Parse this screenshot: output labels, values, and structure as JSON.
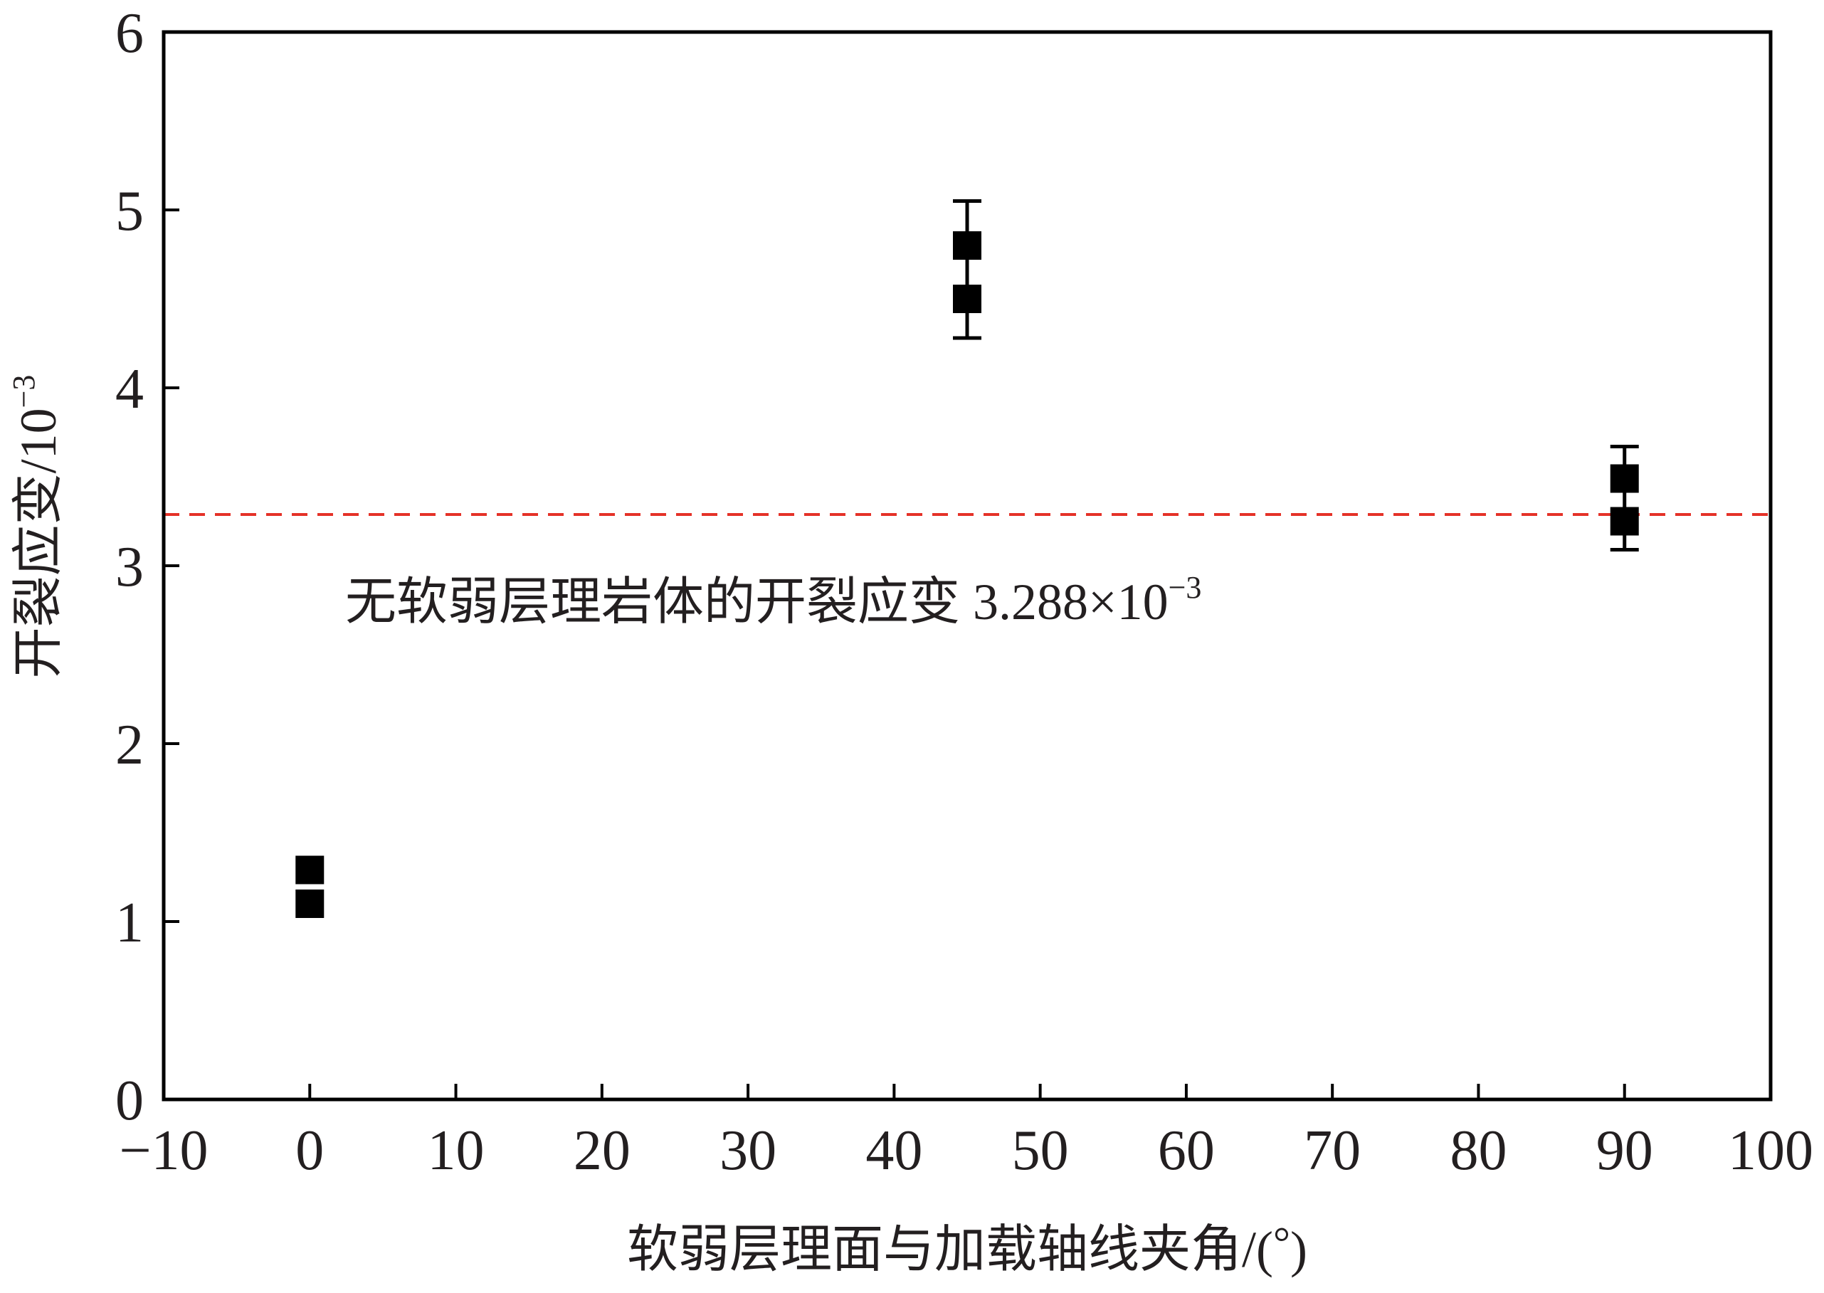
{
  "chart_data": {
    "type": "scatter",
    "xlabel_main": "软弱层理面与加载轴线夹角/(",
    "xlabel_unit": "°",
    "xlabel_close": ")",
    "ylabel_main": "开裂应变/10",
    "ylabel_exp": "−3",
    "xlim": [
      -10,
      100
    ],
    "ylim": [
      0,
      6
    ],
    "x_ticks": [
      -10,
      0,
      10,
      20,
      30,
      40,
      50,
      60,
      70,
      80,
      90,
      100
    ],
    "x_tick_labels": [
      "−10",
      "0",
      "10",
      "20",
      "30",
      "40",
      "50",
      "60",
      "70",
      "80",
      "90",
      "100"
    ],
    "y_ticks": [
      0,
      1,
      2,
      3,
      4,
      5,
      6
    ],
    "y_tick_labels": [
      "0",
      "1",
      "2",
      "3",
      "4",
      "5",
      "6"
    ],
    "series": [
      {
        "marker": "square",
        "color": "#000000",
        "points": [
          {
            "x": 0,
            "y": 1.29
          },
          {
            "x": 0,
            "y": 1.1
          },
          {
            "x": 45,
            "y": 4.8
          },
          {
            "x": 45,
            "y": 4.5
          },
          {
            "x": 90,
            "y": 3.49
          },
          {
            "x": 90,
            "y": 3.25
          }
        ]
      }
    ],
    "error_bars": [
      {
        "x": 45,
        "low": 4.28,
        "high": 5.05
      },
      {
        "x": 90,
        "low": 3.09,
        "high": 3.67
      }
    ],
    "reference_line": {
      "y": 3.288,
      "color": "#e53228",
      "style": "dashed"
    },
    "annotation_main": "无软弱层理岩体的开裂应变 3.288×10",
    "annotation_exp": "−3",
    "grid": false
  }
}
